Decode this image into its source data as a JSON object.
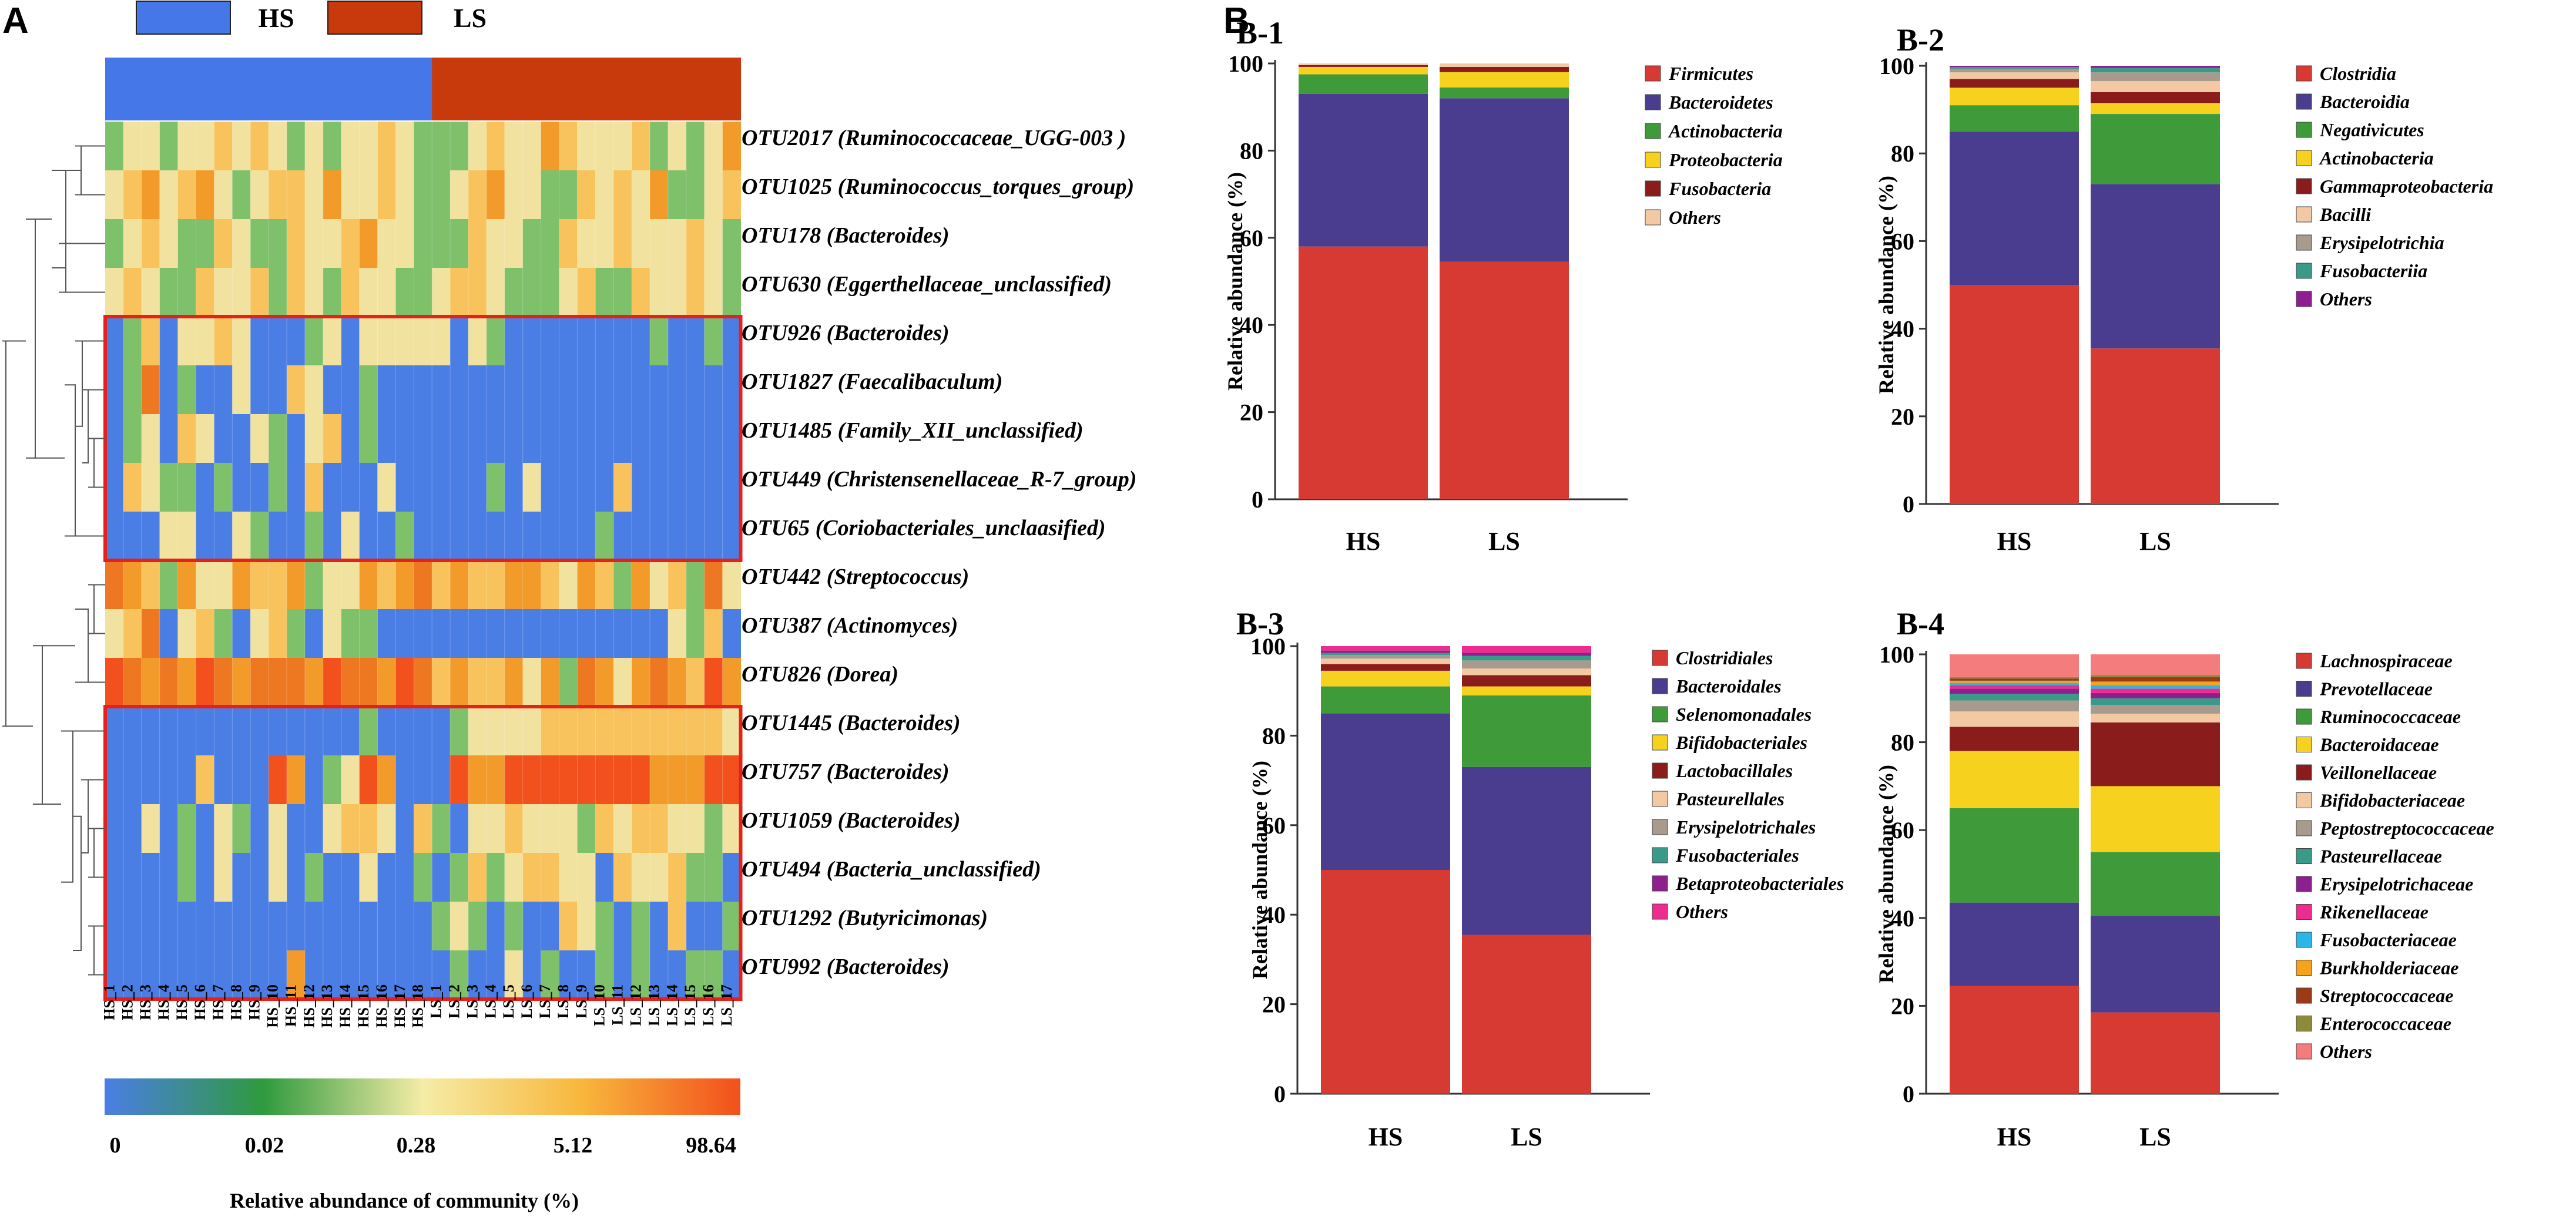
{
  "panels": {
    "a": "A",
    "b": "B"
  },
  "heatmap": {
    "group_legend": [
      {
        "label": "HS",
        "color": "#4577e8"
      },
      {
        "label": "LS",
        "color": "#c83a0c"
      }
    ],
    "samples": [
      "HS_1",
      "HS_2",
      "HS_3",
      "HS_4",
      "HS_5",
      "HS_6",
      "HS_7",
      "HS_8",
      "HS_9",
      "HS_10",
      "HS_11",
      "HS_12",
      "HS_13",
      "HS_14",
      "HS_15",
      "HS_16",
      "HS_17",
      "HS_18",
      "LS_1",
      "LS_2",
      "LS_3",
      "LS_4",
      "LS_5",
      "LS_6",
      "LS_7",
      "LS_8",
      "LS_9",
      "LS_10",
      "LS_11",
      "LS_12",
      "LS_13",
      "LS_14",
      "LS_15",
      "LS_16",
      "LS_17"
    ],
    "sample_groups": [
      "HS",
      "HS",
      "HS",
      "HS",
      "HS",
      "HS",
      "HS",
      "HS",
      "HS",
      "HS",
      "HS",
      "HS",
      "HS",
      "HS",
      "HS",
      "HS",
      "HS",
      "HS",
      "LS",
      "LS",
      "LS",
      "LS",
      "LS",
      "LS",
      "LS",
      "LS",
      "LS",
      "LS",
      "LS",
      "LS",
      "LS",
      "LS",
      "LS",
      "LS",
      "LS"
    ],
    "rows": [
      "OTU2017 (Ruminococcaceae_UGG-003 )",
      "OTU1025 (Ruminococcus_torques_group)",
      "OTU178 (Bacteroides)",
      "OTU630 (Eggerthellaceae_unclassified)",
      "OTU926 (Bacteroides)",
      "OTU1827 (Faecalibaculum)",
      "OTU1485 (Family_XII_unclassified)",
      "OTU449 (Christensenellaceae_R-7_group)",
      "OTU65 (Coriobacteriales_unclaasified)",
      "OTU442 (Streptococcus)",
      "OTU387 (Actinomyces)",
      "OTU826 (Dorea)",
      "OTU1445 (Bacteroides)",
      "OTU757 (Bacteroides)",
      "OTU1059 (Bacteroides)",
      "OTU494 (Bacteria_unclassified)",
      "OTU1292 (Butyricimonas)",
      "OTU992 (Bacteroides)"
    ],
    "levels": [
      "ABBABBCBCBABABBCBAAABCBBDCBBBCABABD",
      "BCDBCDBABCCBDBBCBAABCDBBAACBCBDAABC",
      "ABCBAACBAACBBCDBBAAACBBAACBBCBBBCBA",
      "BCBAACBBCACBACBBAABCCBAAABCAACBBCBA",
      "9AC9BBCB999AB9BBBBB9BA99999999A99A9",
      "9AE9A99B99CB99A99999999999999999999",
      "9AB9CB99BA9BC9A99999999999999999999",
      "9CBAA9A99A9C999B99999A9B9999C999999",
      "999BB99BA99A9B99A9999999999A9999999",
      "EDCADBBDCCDABBDCDECDCCDDCBDCADBCAEB",
      "BCE9BCA9BCA9BAA9999999999999999BAC9",
      "FEDEDFEDEEEDFEEDFECDCCDBDAEDBDEDCFD",
      "99999999999999A9999ABBBBCCCCCCCCCCB",
      "99999C999FD9ABFD999FDDFFFFFFFFDDDFF",
      "99B9A9BA9B99BCCB9CA9BBCBBBACBCCBBAB",
      "9999A9B99B9A99B99A9ACABCCBB9CBBCAA9",
      "999999999999999999ABA9A99CBA9A9C99A",
      "9999999999D99999999A99B9A99A9A99AA9"
    ],
    "level_colors": {
      "9": "#4a7ee5",
      "A": "#7fc06a",
      "B": "#f1e2a0",
      "C": "#f8c35c",
      "D": "#f29a2a",
      "E": "#ee7722",
      "F": "#f2501c"
    },
    "outline_groups": [
      [
        4,
        8
      ],
      [
        12,
        17
      ]
    ],
    "outline_color": "#e8201a",
    "colorbar": {
      "ticks": [
        "0",
        "0.02",
        "0.28",
        "5.12",
        "98.64"
      ],
      "title": "Relative abundance of community (%)",
      "stops": [
        "#4a7ee5",
        "#2f9a3e",
        "#f5eca6",
        "#f8b73c",
        "#f2501c"
      ]
    }
  },
  "bar_charts": [
    {
      "id": "B-1",
      "title": "B-1",
      "ylabel": "Relative abundance (%)",
      "yticks": [
        "0",
        "20",
        "40",
        "60",
        "80",
        "100"
      ],
      "ylim": [
        0,
        100
      ],
      "categories": [
        "HS",
        "LS"
      ],
      "series": [
        {
          "name": "Firmicutes",
          "color": "#d63a33",
          "values": [
            58.0,
            54.5
          ]
        },
        {
          "name": "Bacteroidetes",
          "color": "#4a3d8f",
          "values": [
            35.0,
            37.5
          ]
        },
        {
          "name": "Actinobacteria",
          "color": "#3f9a3a",
          "values": [
            4.5,
            2.5
          ]
        },
        {
          "name": "Proteobacteria",
          "color": "#f6d21f",
          "values": [
            1.7,
            3.5
          ]
        },
        {
          "name": "Fusobacteria",
          "color": "#8b1c1c",
          "values": [
            0.4,
            1.2
          ]
        },
        {
          "name": "Others",
          "color": "#f3c9a4",
          "values": [
            0.4,
            0.8
          ]
        }
      ]
    },
    {
      "id": "B-2",
      "title": "B-2",
      "ylabel": "Relative abundance (%)",
      "yticks": [
        "0",
        "20",
        "40",
        "60",
        "80",
        "100"
      ],
      "ylim": [
        0,
        100
      ],
      "categories": [
        "HS",
        "LS"
      ],
      "series": [
        {
          "name": "Clostridia",
          "color": "#d63a33",
          "values": [
            50.0,
            35.5
          ]
        },
        {
          "name": "Bacteroidia",
          "color": "#4a3d8f",
          "values": [
            35.0,
            37.5
          ]
        },
        {
          "name": "Negativicutes",
          "color": "#3f9a3a",
          "values": [
            6.0,
            16.0
          ]
        },
        {
          "name": "Actinobacteria",
          "color": "#f6d21f",
          "values": [
            4.0,
            2.5
          ]
        },
        {
          "name": "Gammaproteobacteria",
          "color": "#8b1c1c",
          "values": [
            2.0,
            2.5
          ]
        },
        {
          "name": "Bacilli",
          "color": "#f3c9a4",
          "values": [
            1.5,
            2.5
          ]
        },
        {
          "name": "Erysipelotrichia",
          "color": "#a89a8c",
          "values": [
            0.8,
            2.0
          ]
        },
        {
          "name": "Fusobacteriia",
          "color": "#3a9a8a",
          "values": [
            0.4,
            1.0
          ]
        },
        {
          "name": "Others",
          "color": "#8e1f8e",
          "values": [
            0.3,
            0.5
          ]
        }
      ]
    },
    {
      "id": "B-3",
      "title": "B-3",
      "ylabel": "Relative abundance (%)",
      "yticks": [
        "0",
        "20",
        "40",
        "60",
        "80",
        "100"
      ],
      "ylim": [
        0,
        100
      ],
      "categories": [
        "HS",
        "LS"
      ],
      "series": [
        {
          "name": "Clostridiales",
          "color": "#d63a33",
          "values": [
            50.0,
            35.5
          ]
        },
        {
          "name": "Bacteroidales",
          "color": "#4a3d8f",
          "values": [
            35.0,
            37.5
          ]
        },
        {
          "name": "Selenomonadales",
          "color": "#3f9a3a",
          "values": [
            6.0,
            16.0
          ]
        },
        {
          "name": "Bifidobacteriales",
          "color": "#f6d21f",
          "values": [
            3.5,
            2.0
          ]
        },
        {
          "name": "Lactobacillales",
          "color": "#8b1c1c",
          "values": [
            1.5,
            2.5
          ]
        },
        {
          "name": "Pasteurellales",
          "color": "#f3c9a4",
          "values": [
            1.2,
            1.5
          ]
        },
        {
          "name": "Erysipelotrichales",
          "color": "#a89a8c",
          "values": [
            0.8,
            1.8
          ]
        },
        {
          "name": "Fusobacteriales",
          "color": "#3a9a8a",
          "values": [
            0.5,
            1.0
          ]
        },
        {
          "name": "Betaproteobacteriales",
          "color": "#8e1f8e",
          "values": [
            0.5,
            0.7
          ]
        },
        {
          "name": "Others",
          "color": "#ee2c8f",
          "values": [
            1.0,
            1.5
          ]
        }
      ]
    },
    {
      "id": "B-4",
      "title": "B-4",
      "ylabel": "Relative abundance (%)",
      "yticks": [
        "0",
        "20",
        "40",
        "60",
        "80",
        "100"
      ],
      "ylim": [
        0,
        100
      ],
      "categories": [
        "HS",
        "LS"
      ],
      "series": [
        {
          "name": "Lachnospiraceae",
          "color": "#d63a33",
          "values": [
            24.5,
            18.5
          ]
        },
        {
          "name": "Prevotellaceae",
          "color": "#4a3d8f",
          "values": [
            19.0,
            22.0
          ]
        },
        {
          "name": "Ruminococcaceae",
          "color": "#3f9a3a",
          "values": [
            21.5,
            14.5
          ]
        },
        {
          "name": "Bacteroidaceae",
          "color": "#f6d21f",
          "values": [
            13.0,
            15.0
          ]
        },
        {
          "name": "Veillonellaceae",
          "color": "#8b1c1c",
          "values": [
            5.5,
            14.5
          ]
        },
        {
          "name": "Bifidobacteriaceae",
          "color": "#f3c9a4",
          "values": [
            3.5,
            2.0
          ]
        },
        {
          "name": "Peptostreptococcaceae",
          "color": "#a89a8c",
          "values": [
            2.5,
            2.0
          ]
        },
        {
          "name": "Pasteurellaceae",
          "color": "#3a9a8a",
          "values": [
            1.5,
            1.5
          ]
        },
        {
          "name": "Erysipelotrichaceae",
          "color": "#8e1f8e",
          "values": [
            1.2,
            1.2
          ]
        },
        {
          "name": "Rikenellaceae",
          "color": "#ee2c8f",
          "values": [
            0.8,
            1.0
          ]
        },
        {
          "name": "Fusobacteriaceae",
          "color": "#2ab7e6",
          "values": [
            0.5,
            0.8
          ]
        },
        {
          "name": "Burkholderiaceae",
          "color": "#f7a21b",
          "values": [
            0.5,
            0.8
          ]
        },
        {
          "name": "Streptococcaceae",
          "color": "#9a3a16",
          "values": [
            0.5,
            1.0
          ]
        },
        {
          "name": "Enterococcaceae",
          "color": "#8b8b3a",
          "values": [
            0.3,
            0.5
          ]
        },
        {
          "name": "Others",
          "color": "#f47c7c",
          "values": [
            5.2,
            4.7
          ]
        }
      ]
    }
  ]
}
